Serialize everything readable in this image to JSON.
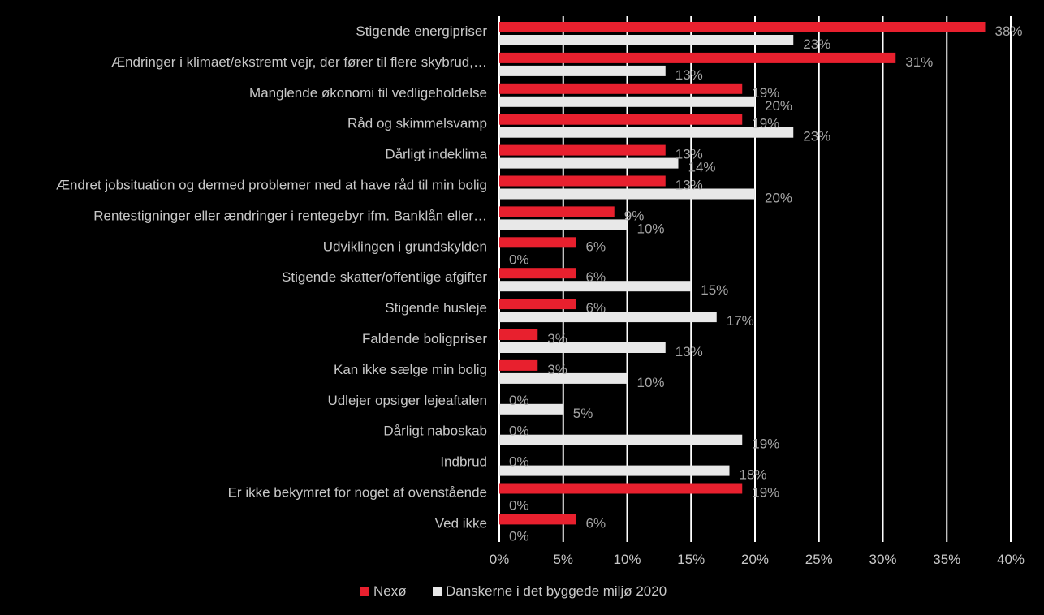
{
  "chart_data": {
    "type": "bar",
    "orientation": "horizontal",
    "categories": [
      "Stigende energipriser",
      "Ændringer i klimaet/ekstremt vejr, der fører til flere skybrud,…",
      "Manglende økonomi til vedligeholdelse",
      "Råd og skimmelsvamp",
      "Dårligt indeklima",
      "Ændret jobsituation og dermed problemer med at have råd til min bolig",
      "Rentestigninger eller ændringer i rentegebyr ifm. Banklån eller…",
      "Udviklingen i grundskylden",
      "Stigende skatter/offentlige afgifter",
      "Stigende husleje",
      "Faldende boligpriser",
      "Kan ikke sælge min bolig",
      "Udlejer opsiger lejeaftalen",
      "Dårligt naboskab",
      "Indbrud",
      "Er ikke bekymret for noget af ovenstående",
      "Ved ikke"
    ],
    "series": [
      {
        "name": "Nexø",
        "color": "#e8202e",
        "values": [
          38,
          31,
          19,
          19,
          13,
          13,
          9,
          6,
          6,
          6,
          3,
          3,
          0,
          0,
          0,
          19,
          6
        ],
        "labels": [
          "38%",
          "31%",
          "19%",
          "19%",
          "13%",
          "13%",
          "9%",
          "6%",
          "6%",
          "6%",
          "3%",
          "3%",
          "0%",
          "0%",
          "0%",
          "19%",
          "6%"
        ]
      },
      {
        "name": "Danskerne i det byggede miljø 2020",
        "color": "#e8e8e8",
        "values": [
          23,
          13,
          20,
          23,
          14,
          20,
          10,
          0,
          15,
          17,
          13,
          10,
          5,
          19,
          18,
          0,
          0
        ],
        "labels": [
          "23%",
          "13%",
          "20%",
          "23%",
          "14%",
          "20%",
          "10%",
          "0%",
          "15%",
          "17%",
          "13%",
          "10%",
          "5%",
          "19%",
          "18%",
          "0%",
          "0%"
        ]
      }
    ],
    "xlim": [
      0,
      40
    ],
    "xticks": [
      0,
      5,
      10,
      15,
      20,
      25,
      30,
      35,
      40
    ],
    "xtick_labels": [
      "0%",
      "5%",
      "10%",
      "15%",
      "20%",
      "25%",
      "30%",
      "35%",
      "40%"
    ],
    "grid": true,
    "legend_position": "bottom"
  }
}
